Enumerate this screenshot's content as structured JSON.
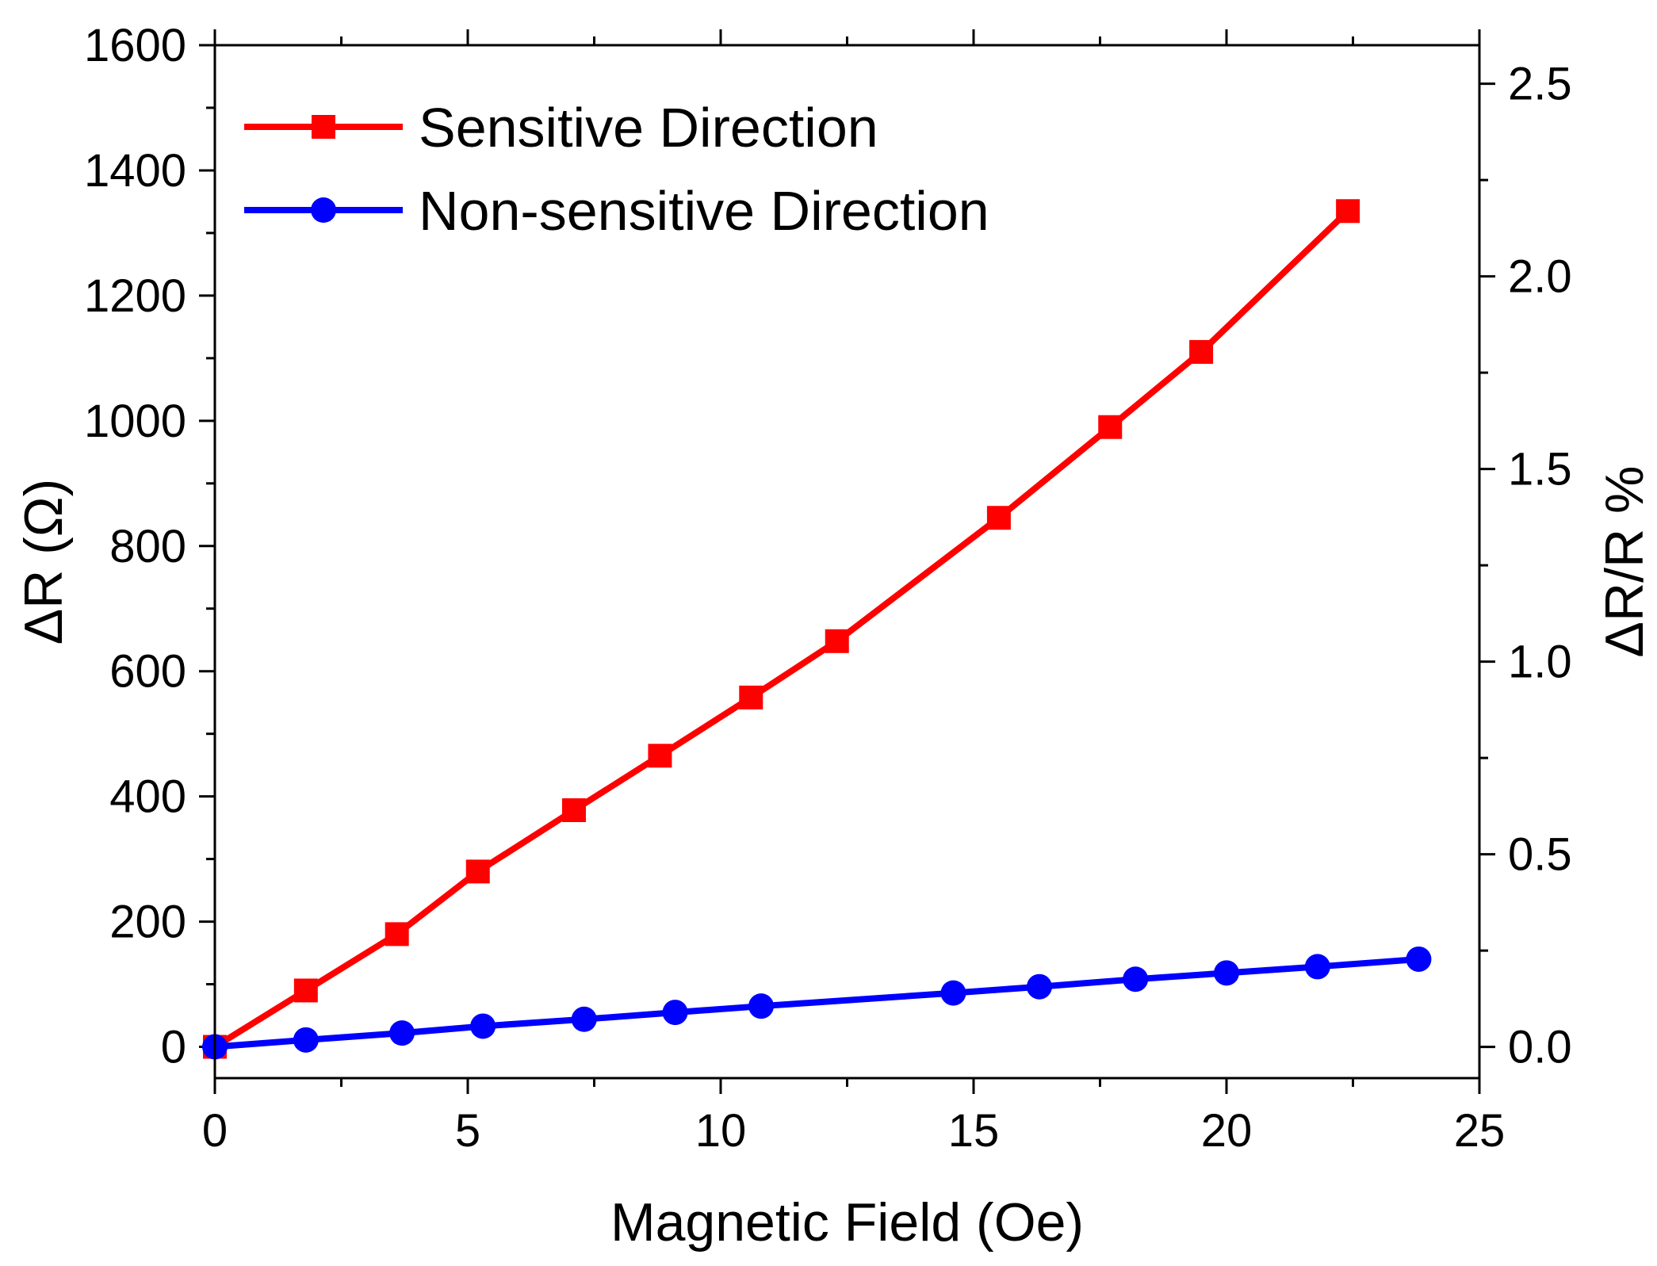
{
  "chart_data": {
    "type": "line",
    "title": "",
    "xlabel": "Magnetic Field (Oe)",
    "ylabel": "ΔR (Ω)",
    "y2label": "ΔR/R %",
    "xlim": [
      0,
      25
    ],
    "ylim": [
      -50,
      1600
    ],
    "y2lim": [
      -0.081,
      2.6
    ],
    "xticks": [
      0,
      5,
      10,
      15,
      20,
      25
    ],
    "xtick_labels": [
      "0",
      "5",
      "10",
      "15",
      "20",
      "25"
    ],
    "yticks": [
      0,
      200,
      400,
      600,
      800,
      1000,
      1200,
      1400,
      1600
    ],
    "ytick_labels": [
      "0",
      "200",
      "400",
      "600",
      "800",
      "1000",
      "1200",
      "1400",
      "1600"
    ],
    "y2ticks": [
      0.0,
      0.5,
      1.0,
      1.5,
      2.0,
      2.5
    ],
    "y2tick_labels": [
      "0.0",
      "0.5",
      "1.0",
      "1.5",
      "2.0",
      "2.5"
    ],
    "grid": false,
    "legend_position": "top-left",
    "series": [
      {
        "name": "Sensitive Direction",
        "color": "#ff0000",
        "marker": "square",
        "x": [
          0,
          1.8,
          3.6,
          5.2,
          7.1,
          8.8,
          10.6,
          12.3,
          15.5,
          17.7,
          19.5,
          22.4
        ],
        "y": [
          0,
          90,
          180,
          280,
          378,
          465,
          558,
          648,
          845,
          990,
          1110,
          1335
        ]
      },
      {
        "name": "Non-sensitive Direction",
        "color": "#0000ff",
        "marker": "circle",
        "x": [
          0,
          1.8,
          3.7,
          5.3,
          7.3,
          9.1,
          10.8,
          14.6,
          16.3,
          18.2,
          20.0,
          21.8,
          23.8
        ],
        "y": [
          0,
          11,
          22,
          33,
          44,
          55,
          65,
          86,
          96,
          108,
          118,
          128,
          140
        ]
      }
    ]
  }
}
